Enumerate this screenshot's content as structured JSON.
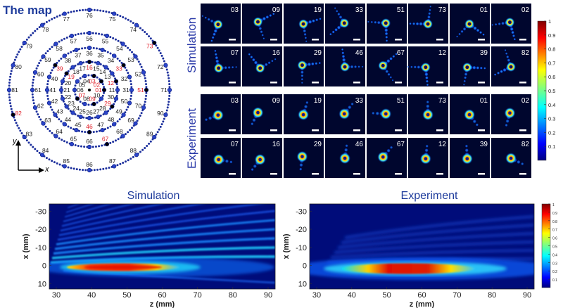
{
  "map": {
    "title": "The map",
    "axis_x": "x",
    "axis_y": "y",
    "rings": [
      [
        "01",
        "02",
        "03",
        "04",
        "05",
        "06",
        "07",
        "08",
        "09",
        "10"
      ],
      [
        "11",
        "12",
        "13",
        "14",
        "15",
        "16",
        "17",
        "18",
        "19",
        "20",
        "21",
        "22",
        "23",
        "24",
        "25",
        "26",
        "27",
        "28",
        "29",
        "30"
      ],
      [
        "31",
        "32",
        "33",
        "34",
        "35",
        "36",
        "37",
        "38",
        "39",
        "40",
        "41",
        "42",
        "43",
        "44",
        "45",
        "46",
        "47",
        "48",
        "49",
        "50"
      ],
      [
        "51",
        "52",
        "53",
        "54",
        "55",
        "56",
        "57",
        "58",
        "59",
        "60",
        "61",
        "62",
        "63",
        "64",
        "65",
        "66",
        "67",
        "68",
        "69",
        "70"
      ],
      [
        "71",
        "72",
        "73",
        "74",
        "75",
        "76",
        "77",
        "78",
        "79",
        "80",
        "81",
        "82",
        "83",
        "84",
        "85",
        "86",
        "87",
        "88",
        "89",
        "90"
      ]
    ],
    "highlighted": [
      "01",
      "02",
      "03",
      "07",
      "09",
      "12",
      "16",
      "19",
      "29",
      "33",
      "39",
      "46",
      "51",
      "67",
      "73",
      "82"
    ],
    "highlight_color": "#e0202a",
    "label_color": "#1a1a1a",
    "dot_color": "#1c2f9c"
  },
  "panels": {
    "sim_label": "Simulation",
    "exp_label": "Experiment",
    "sim_row1": [
      "03",
      "09",
      "19",
      "33",
      "51",
      "73",
      "01",
      "02"
    ],
    "sim_row2": [
      "07",
      "16",
      "29",
      "46",
      "67",
      "12",
      "39",
      "82"
    ],
    "exp_row1": [
      "03",
      "09",
      "19",
      "33",
      "51",
      "73",
      "01",
      "02"
    ],
    "exp_row2": [
      "07",
      "16",
      "29",
      "46",
      "67",
      "12",
      "39",
      "82"
    ]
  },
  "colorbar_top": {
    "ticks": [
      "1",
      "0.9",
      "0.8",
      "0.7",
      "0.6",
      "0.5",
      "0.4",
      "0.3",
      "0.2",
      "0.1"
    ]
  },
  "bottom": {
    "sim_title": "Simulation",
    "exp_title": "Experiment",
    "xlabel": "z (mm)",
    "ylabel": "x (mm)",
    "xticks": [
      "30",
      "40",
      "50",
      "60",
      "70",
      "80",
      "90"
    ],
    "yticks": [
      "-30",
      "-20",
      "-10",
      "0",
      "10"
    ],
    "colorbar_ticks": [
      "1",
      "0.9",
      "0.8",
      "0.7",
      "0.6",
      "0.5",
      "0.4",
      "0.3",
      "0.2",
      "0.1"
    ]
  }
}
